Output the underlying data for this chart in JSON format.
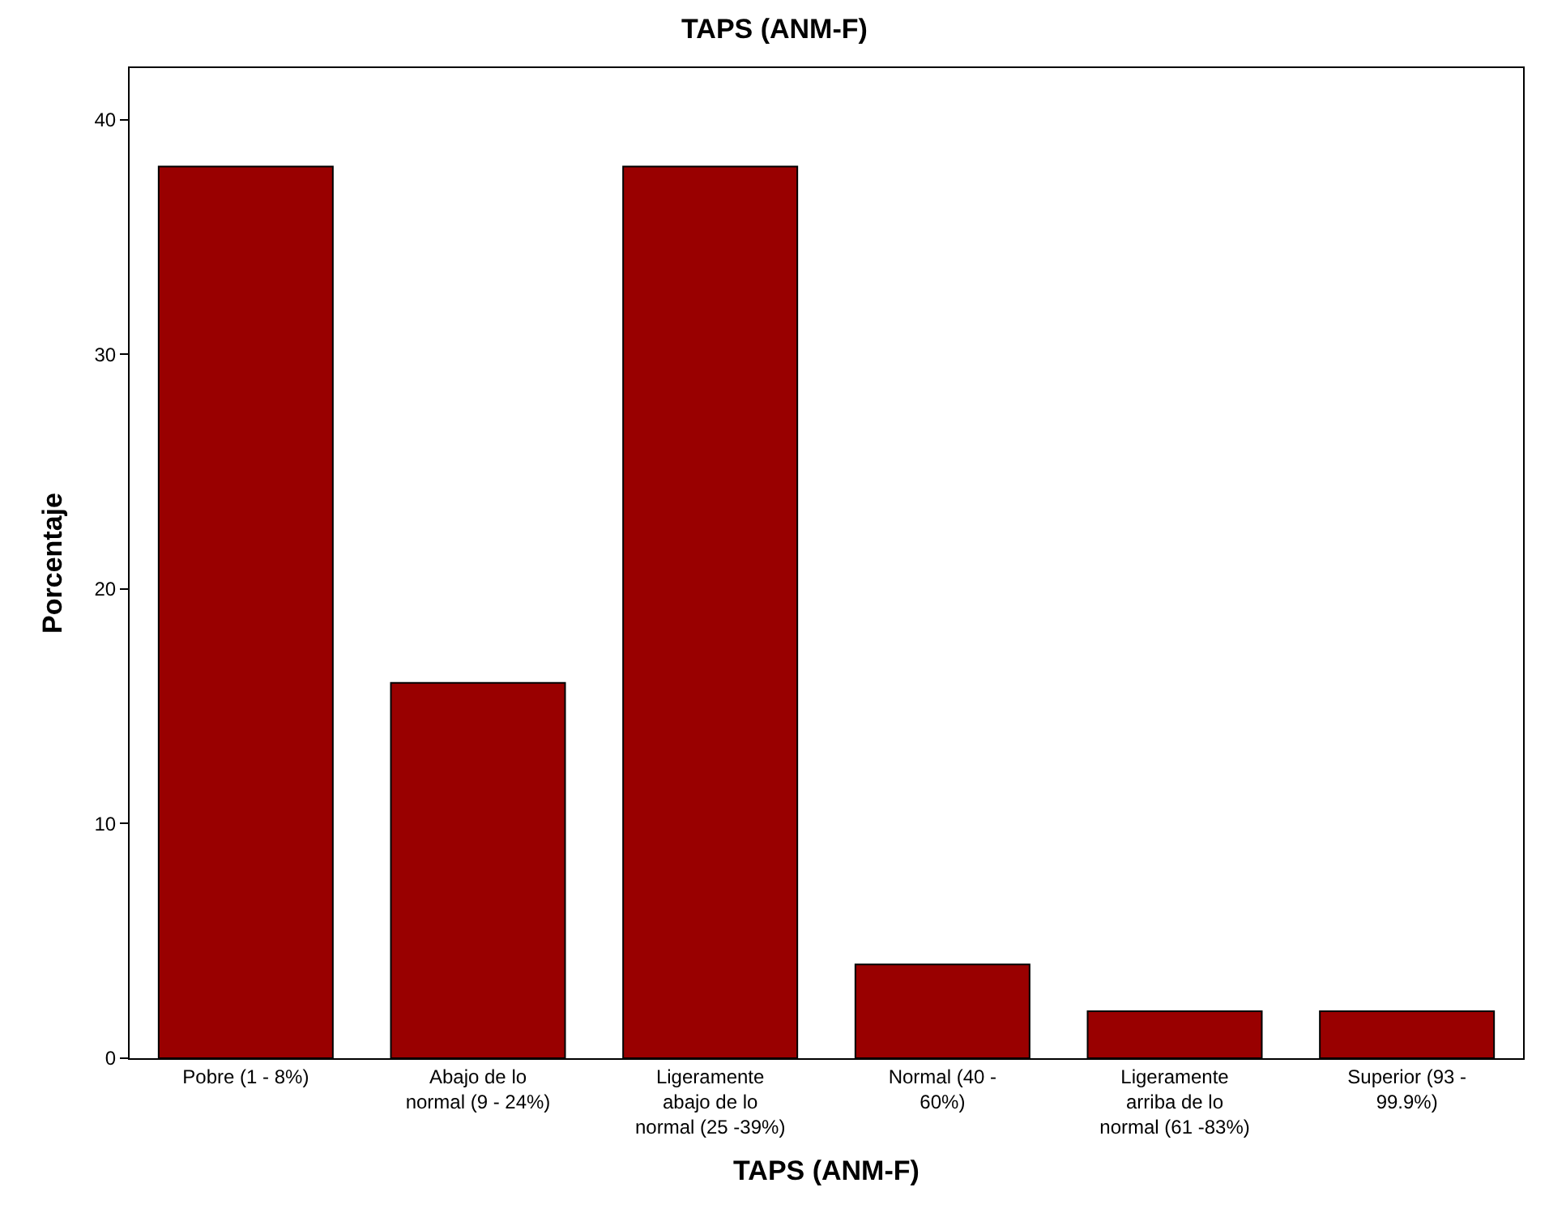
{
  "chart_data": {
    "type": "bar",
    "title": "TAPS (ANM-F)",
    "xlabel": "TAPS (ANM-F)",
    "ylabel": "Porcentaje",
    "categories": [
      "Pobre (1 - 8%)",
      "Abajo de lo normal (9 - 24%)",
      "Ligeramente abajo de lo normal (25 -39%)",
      "Normal (40 - 60%)",
      "Ligeramente arriba de lo normal (61 -83%)",
      "Superior (93 - 99.9%)"
    ],
    "values": [
      38,
      16,
      38,
      4,
      2,
      2
    ],
    "color": "#990000",
    "ylim": [
      0,
      42.2
    ],
    "yticks": [
      0,
      10,
      20,
      30,
      40
    ]
  }
}
